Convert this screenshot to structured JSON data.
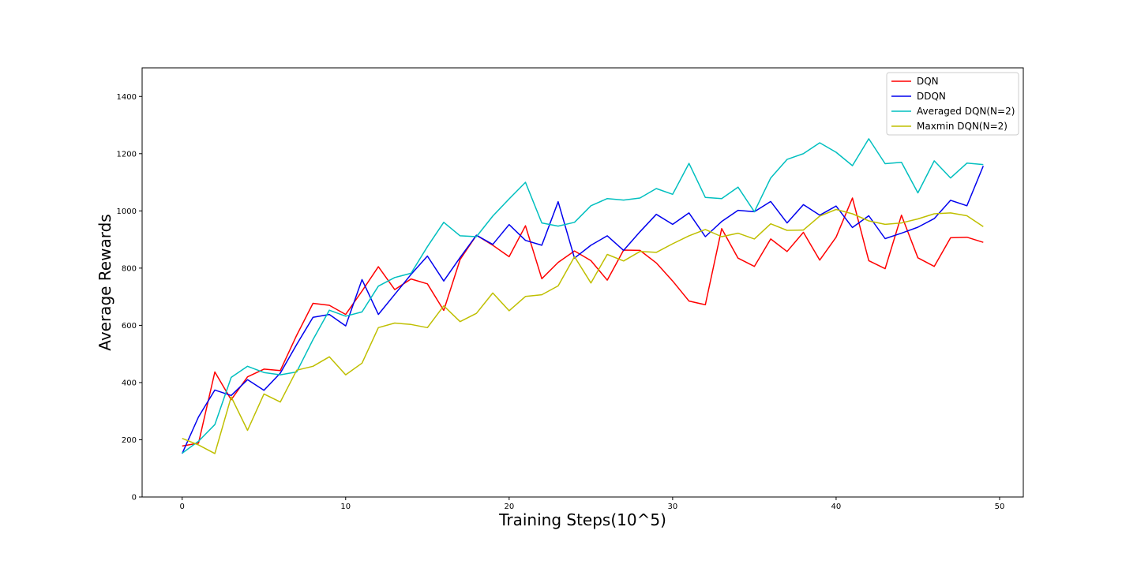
{
  "chart_data": {
    "type": "line",
    "title": "",
    "xlabel": "Training Steps(10^5)",
    "ylabel": "Average Rewards",
    "xlim": [
      -2.45,
      51.45
    ],
    "ylim": [
      0,
      1500
    ],
    "xticks": [
      0,
      10,
      20,
      30,
      40,
      50
    ],
    "yticks": [
      0,
      200,
      400,
      600,
      800,
      1000,
      1200,
      1400
    ],
    "grid": false,
    "legend_position": "top-right",
    "x": [
      0,
      1,
      2,
      3,
      4,
      5,
      6,
      7,
      8,
      9,
      10,
      11,
      12,
      13,
      14,
      15,
      16,
      17,
      18,
      19,
      20,
      21,
      22,
      23,
      24,
      25,
      26,
      27,
      28,
      29,
      30,
      31,
      32,
      33,
      34,
      35,
      36,
      37,
      38,
      39,
      40,
      41,
      42,
      43,
      44,
      45,
      46,
      47,
      48,
      49
    ],
    "series": [
      {
        "name": "DQN",
        "color": "#ff0000",
        "values": [
          178,
          188,
          437,
          340,
          420,
          447,
          442,
          565,
          677,
          670,
          638,
          720,
          805,
          725,
          762,
          745,
          652,
          830,
          915,
          880,
          840,
          948,
          763,
          820,
          860,
          826,
          758,
          863,
          862,
          818,
          755,
          685,
          672,
          938,
          835,
          806,
          902,
          858,
          925,
          828,
          908,
          1045,
          826,
          798,
          985,
          836,
          806,
          906,
          908,
          890
        ]
      },
      {
        "name": "DDQN",
        "color": "#0000ee",
        "values": [
          152,
          280,
          374,
          355,
          410,
          373,
          433,
          533,
          628,
          638,
          598,
          760,
          638,
          708,
          778,
          842,
          755,
          837,
          915,
          883,
          952,
          897,
          880,
          1032,
          835,
          880,
          913,
          862,
          927,
          988,
          953,
          993,
          910,
          963,
          1002,
          997,
          1033,
          958,
          1022,
          985,
          1017,
          942,
          983,
          903,
          922,
          943,
          973,
          1037,
          1018,
          1157
        ]
      },
      {
        "name": "Averaged DQN(N=2)",
        "color": "#00bfbf",
        "values": [
          153,
          195,
          253,
          418,
          457,
          435,
          427,
          437,
          550,
          653,
          632,
          647,
          737,
          767,
          782,
          875,
          960,
          913,
          910,
          982,
          1042,
          1100,
          958,
          947,
          960,
          1018,
          1043,
          1038,
          1045,
          1078,
          1058,
          1166,
          1047,
          1043,
          1083,
          997,
          1115,
          1180,
          1200,
          1238,
          1205,
          1158,
          1252,
          1165,
          1170,
          1063,
          1175,
          1115,
          1167,
          1162
        ]
      },
      {
        "name": "Maxmin DQN(N=2)",
        "color": "#bfbf00",
        "values": [
          205,
          182,
          152,
          350,
          233,
          360,
          332,
          443,
          457,
          490,
          427,
          468,
          592,
          608,
          603,
          592,
          668,
          613,
          642,
          713,
          651,
          701,
          707,
          738,
          840,
          748,
          848,
          825,
          858,
          855,
          885,
          913,
          935,
          910,
          922,
          902,
          955,
          932,
          933,
          982,
          1005,
          990,
          965,
          953,
          958,
          972,
          990,
          993,
          983,
          945
        ]
      }
    ]
  }
}
